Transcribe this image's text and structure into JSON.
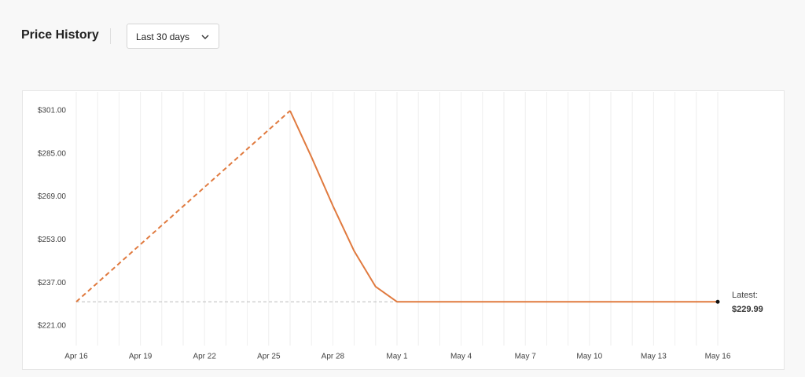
{
  "header": {
    "title": "Price History",
    "range": "Last 30 days"
  },
  "chart_data": {
    "type": "line",
    "categories": [
      "Apr 16",
      null,
      null,
      "Apr 19",
      null,
      null,
      "Apr 22",
      null,
      null,
      "Apr 25",
      null,
      null,
      "Apr 28",
      null,
      null,
      "May 1",
      null,
      null,
      "May 4",
      null,
      null,
      "May 7",
      null,
      null,
      "May 10",
      null,
      null,
      "May 13",
      null,
      null,
      "May 16"
    ],
    "series": [
      {
        "color": "#e07a3f",
        "dashed": true,
        "values": [
          229.99,
          237.09,
          244.19,
          251.29,
          258.39,
          265.49,
          272.6,
          279.7,
          286.8,
          293.9,
          301.0,
          null,
          null,
          null,
          null,
          null,
          null,
          null,
          null,
          null,
          null,
          null,
          null,
          null,
          null,
          null,
          null,
          null,
          null,
          null,
          null
        ]
      },
      {
        "color": "#e07a3f",
        "dashed": false,
        "values": [
          null,
          null,
          null,
          null,
          null,
          null,
          null,
          null,
          null,
          null,
          301.0,
          283.8,
          265.7,
          248.8,
          235.6,
          229.99,
          229.99,
          229.99,
          229.99,
          229.99,
          229.99,
          229.99,
          229.99,
          229.99,
          229.99,
          229.99,
          229.99,
          229.99,
          229.99,
          229.99,
          229.99
        ]
      }
    ],
    "ylim": [
      221,
      301
    ],
    "yticks": [
      {
        "value": 221,
        "label": "$221.00"
      },
      {
        "value": 237,
        "label": "$237.00"
      },
      {
        "value": 253,
        "label": "$253.00"
      },
      {
        "value": 269,
        "label": "$269.00"
      },
      {
        "value": 285,
        "label": "$285.00"
      },
      {
        "value": 301,
        "label": "$301.00"
      }
    ],
    "grid": true,
    "latest": {
      "label": "Latest:",
      "value": 229.99,
      "value_label": "$229.99"
    }
  }
}
